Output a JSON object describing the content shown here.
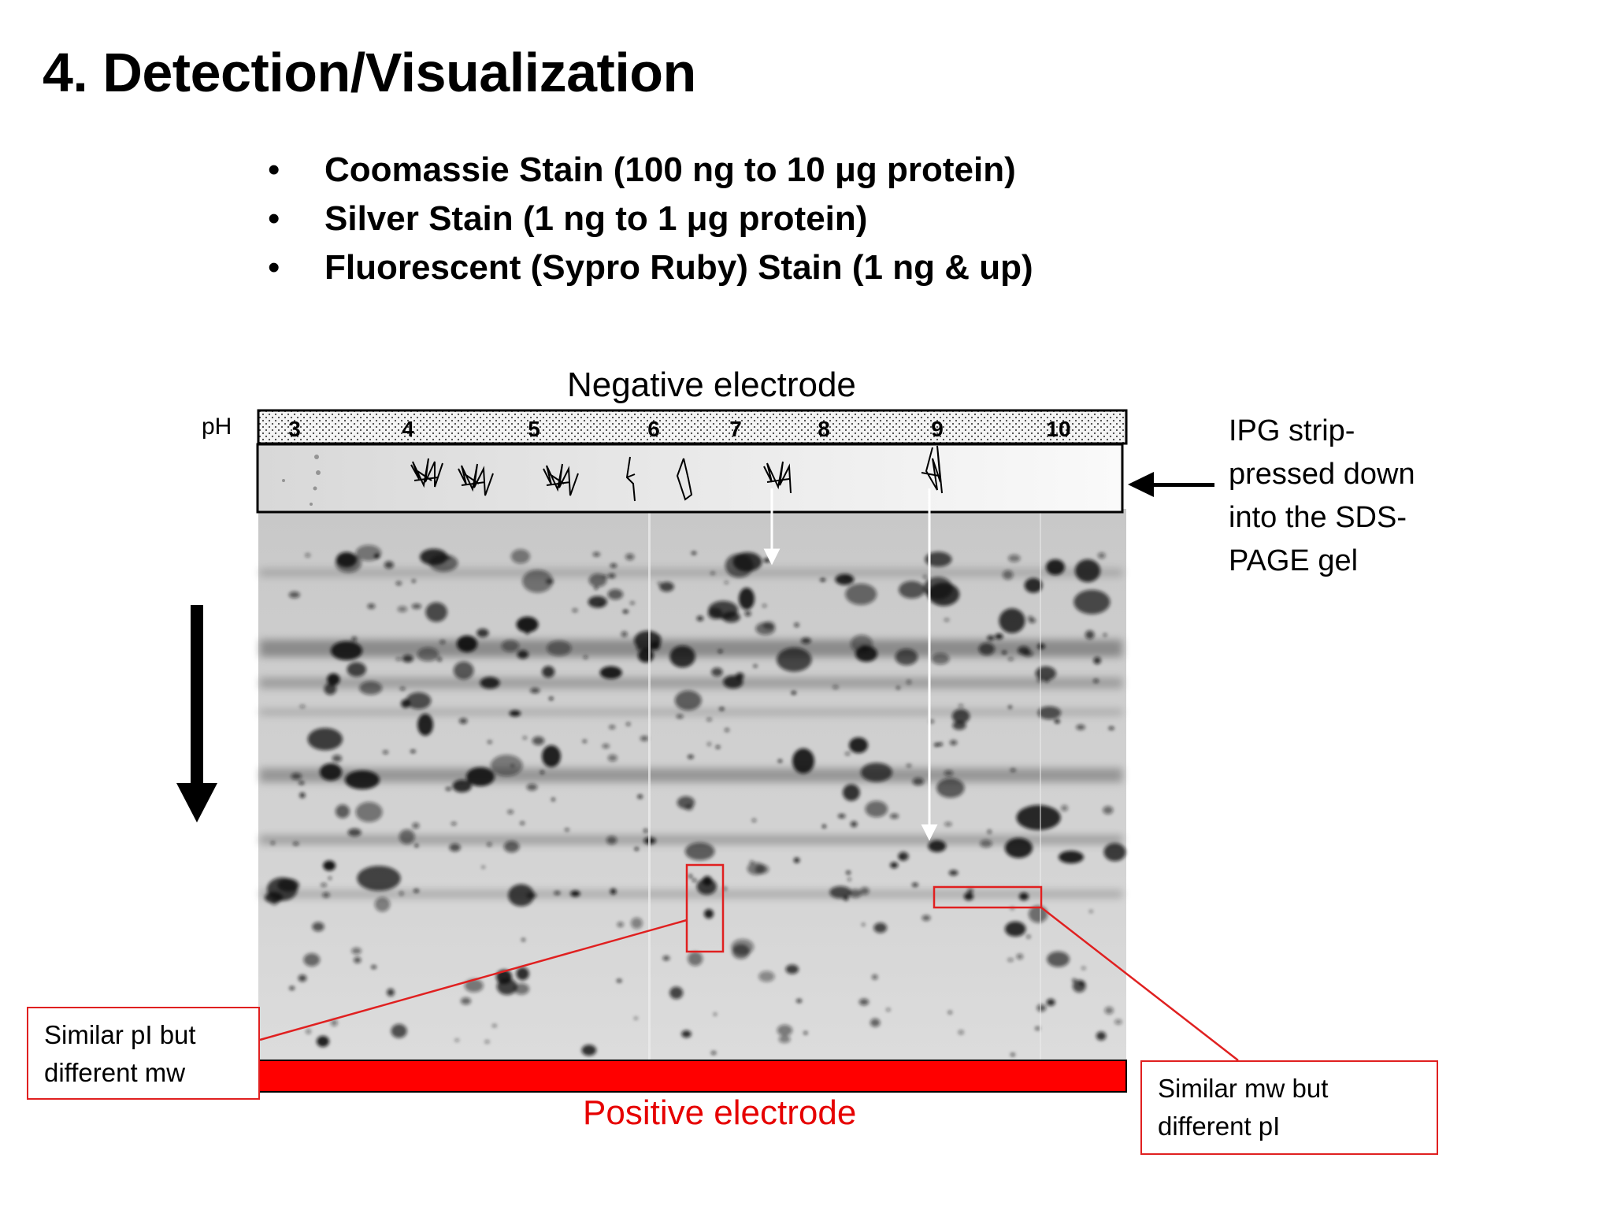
{
  "slide": {
    "title": "4. Detection/Visualization",
    "bullets": [
      "Coomassie Stain (100 ng to 10 μg protein)",
      "Silver Stain (1 ng to 1 μg protein)",
      "Fluorescent (Sypro Ruby) Stain (1 ng & up)"
    ]
  },
  "diagram": {
    "negative_electrode": "Negative electrode",
    "positive_electrode": "Positive electrode",
    "ph_label": "pH",
    "ph_ticks": [
      "3",
      "4",
      "5",
      "6",
      "7",
      "8",
      "9",
      "10"
    ],
    "ipg_label_lines": [
      "IPG strip-",
      "pressed down",
      "into the SDS-",
      "PAGE gel"
    ],
    "callout_left_lines": [
      "Similar pI but",
      "different mw"
    ],
    "callout_right_lines": [
      "Similar mw but",
      "different pI"
    ],
    "colors": {
      "positive_bar": "#ff0000",
      "callout_border": "#e02020",
      "positive_text": "#e60000"
    }
  }
}
